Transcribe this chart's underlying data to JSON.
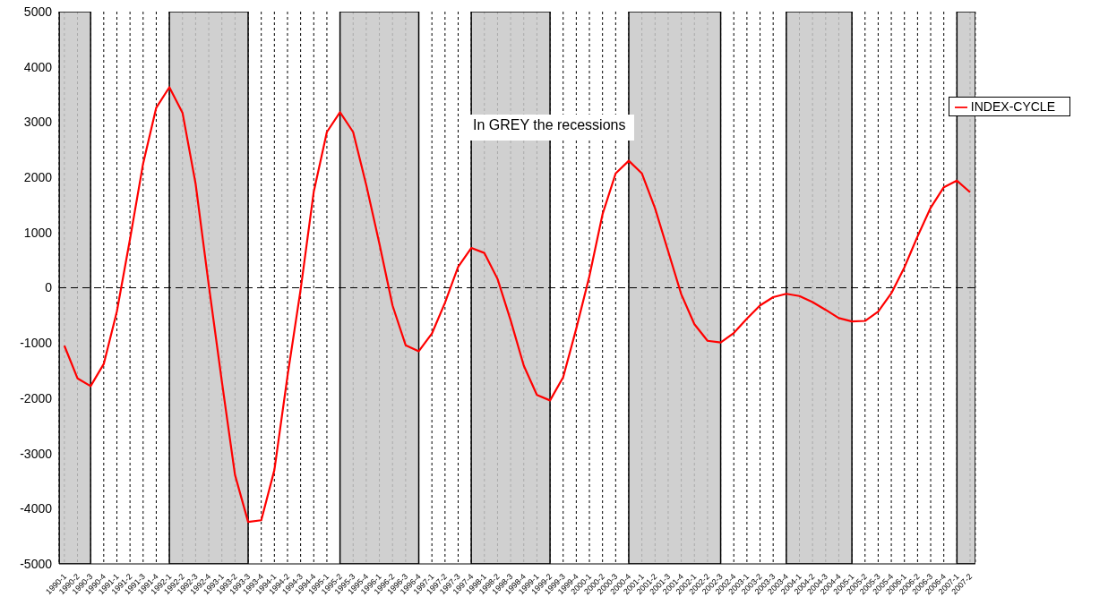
{
  "chart_data": {
    "type": "line",
    "categories": [
      "1990-1",
      "1990-2",
      "1990-3",
      "1990-4",
      "1991-1",
      "1991-2",
      "1991-3",
      "1991-4",
      "1992-1",
      "1992-2",
      "1992-3",
      "1992-4",
      "1993-1",
      "1993-2",
      "1993-3",
      "1993-4",
      "1994-1",
      "1994-2",
      "1994-3",
      "1994-4",
      "1995-1",
      "1995-2",
      "1995-3",
      "1995-4",
      "1996-1",
      "1996-2",
      "1996-3",
      "1996-4",
      "1997-1",
      "1997-2",
      "1997-3",
      "1997-4",
      "1998-1",
      "1998-2",
      "1998-3",
      "1998-4",
      "1999-1",
      "1999-2",
      "1999-3",
      "1999-4",
      "2000-1",
      "2000-2",
      "2000-3",
      "2000-4",
      "2001-1",
      "2001-2",
      "2001-3",
      "2001-4",
      "2002-1",
      "2002-2",
      "2002-3",
      "2002-4",
      "2003-1",
      "2003-2",
      "2003-3",
      "2003-4",
      "2004-1",
      "2004-2",
      "2004-3",
      "2004-4",
      "2005-1",
      "2005-2",
      "2005-3",
      "2005-4",
      "2006-1",
      "2006-2",
      "2006-3",
      "2006-4",
      "2007-1",
      "2007-2"
    ],
    "series": [
      {
        "name": "INDEX-CYCLE",
        "color": "#ff0000",
        "values": [
          -1050,
          -1640,
          -1780,
          -1380,
          -430,
          880,
          2250,
          3260,
          3630,
          3170,
          1880,
          50,
          -1700,
          -3390,
          -4240,
          -4210,
          -3300,
          -1600,
          -30,
          1740,
          2820,
          3180,
          2820,
          1860,
          800,
          -320,
          -1040,
          -1150,
          -830,
          -270,
          380,
          720,
          630,
          160,
          -590,
          -1410,
          -1940,
          -2040,
          -1620,
          -740,
          210,
          1330,
          2070,
          2300,
          2070,
          1440,
          660,
          -120,
          -660,
          -960,
          -990,
          -820,
          -560,
          -320,
          -170,
          -110,
          -150,
          -260,
          -400,
          -550,
          -610,
          -600,
          -430,
          -100,
          370,
          930,
          1450,
          1820,
          1940,
          1730
        ]
      }
    ],
    "ylim": [
      -5000,
      5000
    ],
    "yticks": [
      -5000,
      -4000,
      -3000,
      -2000,
      -1000,
      0,
      1000,
      2000,
      3000,
      4000,
      5000
    ],
    "grid": "x",
    "legend": "top right",
    "marker": "none",
    "line_style": "solid",
    "ref_lines": [
      {
        "axis": "y",
        "value": 0,
        "line_style": "dashed",
        "color": "#000000"
      }
    ],
    "bands": [
      {
        "axis": "x",
        "from": "1990-1",
        "to": "1990-3",
        "color": "#c8c8c8"
      },
      {
        "axis": "x",
        "from": "1992-1",
        "to": "1993-3",
        "color": "#c8c8c8"
      },
      {
        "axis": "x",
        "from": "1995-2",
        "to": "1996-4",
        "color": "#c8c8c8"
      },
      {
        "axis": "x",
        "from": "1997-4",
        "to": "1999-2",
        "color": "#c8c8c8"
      },
      {
        "axis": "x",
        "from": "2000-4",
        "to": "2002-3",
        "color": "#c8c8c8"
      },
      {
        "axis": "x",
        "from": "2003-4",
        "to": "2005-1",
        "color": "#c8c8c8"
      },
      {
        "axis": "x",
        "from": "2007-1",
        "to": "2007-2",
        "color": "#c8c8c8"
      }
    ],
    "annotations": [
      "In GREY the recessions"
    ]
  }
}
